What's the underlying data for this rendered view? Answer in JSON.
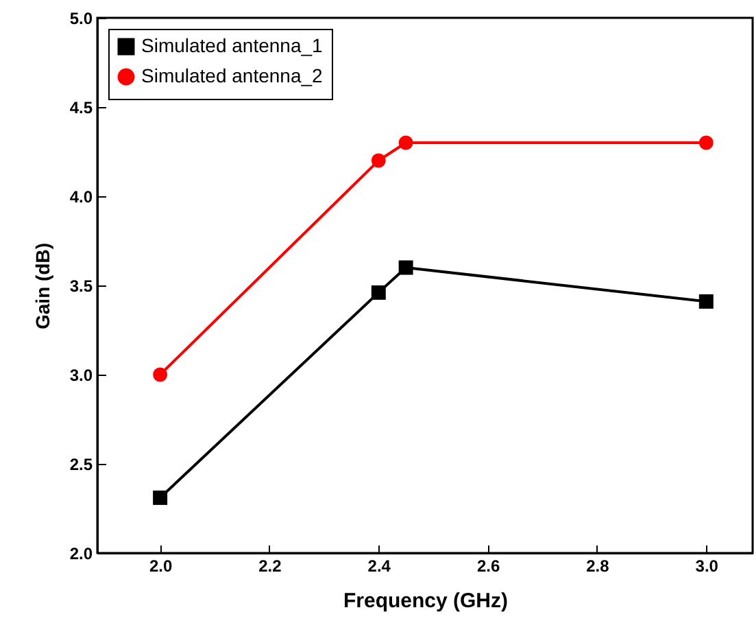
{
  "chart_data": {
    "type": "line",
    "xlabel": "Frequency (GHz)",
    "ylabel": "Gain (dB)",
    "xlim": [
      1.885,
      3.085
    ],
    "ylim": [
      2.0,
      5.0
    ],
    "xticks": [
      {
        "value": 2.0,
        "label": "2.0"
      },
      {
        "value": 2.2,
        "label": "2.2"
      },
      {
        "value": 2.4,
        "label": "2.4"
      },
      {
        "value": 2.6,
        "label": "2.6"
      },
      {
        "value": 2.8,
        "label": "2.8"
      },
      {
        "value": 3.0,
        "label": "3.0"
      }
    ],
    "yticks": [
      {
        "value": 2.0,
        "label": "2.0"
      },
      {
        "value": 2.5,
        "label": "2.5"
      },
      {
        "value": 3.0,
        "label": "3.0"
      },
      {
        "value": 3.5,
        "label": "3.5"
      },
      {
        "value": 4.0,
        "label": "4.0"
      },
      {
        "value": 4.5,
        "label": "4.5"
      },
      {
        "value": 5.0,
        "label": "5.0"
      }
    ],
    "grid": false,
    "legend": "top left",
    "line_style": "solid",
    "series": [
      {
        "name": "Simulated antenna_1",
        "color": "#000000",
        "marker": "square",
        "x": [
          2.0,
          2.4,
          2.45,
          3.0
        ],
        "values": [
          2.31,
          3.46,
          3.6,
          3.41
        ]
      },
      {
        "name": "Simulated antenna_2",
        "color": "#ff0000",
        "marker": "circle",
        "x": [
          2.0,
          2.4,
          2.45,
          3.0
        ],
        "values": [
          3.0,
          4.2,
          4.3,
          4.3
        ]
      }
    ]
  }
}
